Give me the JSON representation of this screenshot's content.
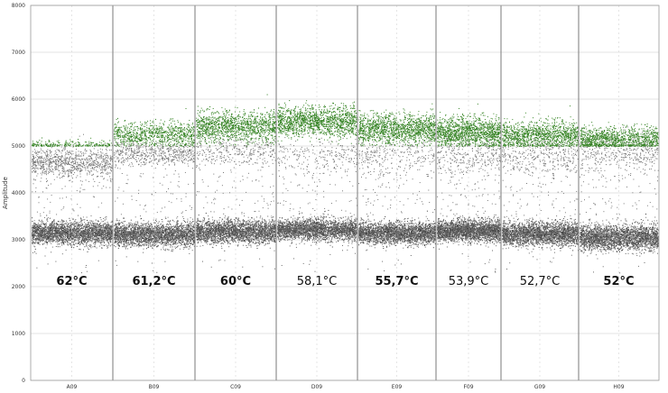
{
  "chart_data": {
    "type": "scatter",
    "title": "",
    "ylabel": "Amplitude",
    "xlabel": "",
    "ylim": [
      0,
      8000
    ],
    "yticks": [
      0,
      1000,
      2000,
      3000,
      4000,
      5000,
      6000,
      7000,
      8000
    ],
    "grid": true,
    "colors": {
      "positive": "#2e7d1e",
      "negative": "#555555",
      "grid": "#c8c8c8",
      "divider": "#7a7a7a"
    },
    "wells": [
      {
        "well": "A09",
        "temperature": "62°C",
        "bold": true,
        "negative_band": 3150,
        "negative_spread": 120,
        "mid_band": 4650,
        "mid_spread": 160,
        "positive_band": 5020,
        "positive_spread": 60,
        "positive_density": 0.15
      },
      {
        "well": "B09",
        "temperature": "61,2°C",
        "bold": true,
        "negative_band": 3120,
        "negative_spread": 120,
        "mid_band": 4850,
        "mid_spread": 120,
        "positive_band": 5250,
        "positive_spread": 130,
        "positive_density": 0.55
      },
      {
        "well": "C09",
        "temperature": "60°C",
        "bold": true,
        "negative_band": 3180,
        "negative_spread": 120,
        "mid_band": 4900,
        "mid_spread": 150,
        "positive_band": 5420,
        "positive_spread": 160,
        "positive_density": 0.8
      },
      {
        "well": "D09",
        "temperature": "58,1°C",
        "bold": false,
        "negative_band": 3220,
        "negative_spread": 110,
        "mid_band": 4800,
        "mid_spread": 200,
        "positive_band": 5530,
        "positive_spread": 160,
        "positive_density": 0.9
      },
      {
        "well": "E09",
        "temperature": "55,7°C",
        "bold": true,
        "negative_band": 3150,
        "negative_spread": 110,
        "mid_band": 4800,
        "mid_spread": 200,
        "positive_band": 5380,
        "positive_spread": 160,
        "positive_density": 0.85
      },
      {
        "well": "F09",
        "temperature": "53,9°C",
        "bold": false,
        "negative_band": 3200,
        "negative_spread": 110,
        "mid_band": 4800,
        "mid_spread": 200,
        "positive_band": 5300,
        "positive_spread": 160,
        "positive_density": 0.8
      },
      {
        "well": "G09",
        "temperature": "52,7°C",
        "bold": false,
        "negative_band": 3130,
        "negative_spread": 120,
        "mid_band": 4800,
        "mid_spread": 200,
        "positive_band": 5220,
        "positive_spread": 150,
        "positive_density": 0.75
      },
      {
        "well": "H09",
        "temperature": "52°C",
        "bold": true,
        "negative_band": 3060,
        "negative_spread": 130,
        "mid_band": 4850,
        "mid_spread": 200,
        "positive_band": 5150,
        "positive_spread": 130,
        "positive_density": 0.7
      }
    ]
  }
}
